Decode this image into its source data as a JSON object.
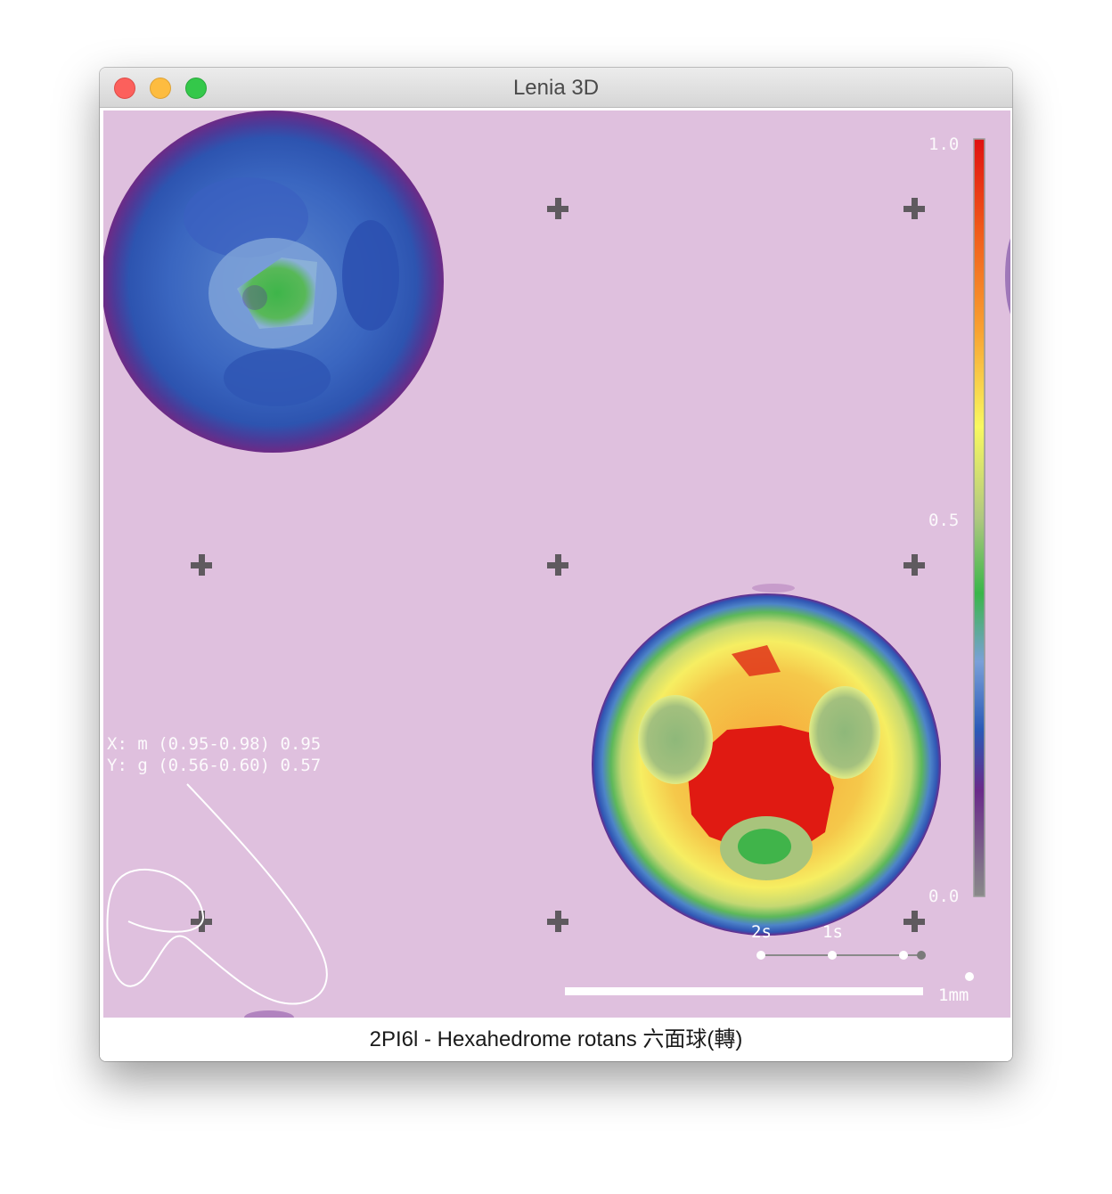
{
  "window": {
    "title": "Lenia 3D",
    "controls": [
      "close-button",
      "minimize-button",
      "zoom-button"
    ]
  },
  "colors": {
    "background": "#dfc0de",
    "cross_markers": "#5f5a5f",
    "overlay_text": "#ffffff",
    "colormap": [
      "#808080",
      "#6a2a8a",
      "#2a5ab8",
      "#7aa0d8",
      "#3ab64a",
      "#b0c880",
      "#f8f860",
      "#f8a030",
      "#f06020",
      "#e01010"
    ]
  },
  "colorbar": {
    "max_label": "1.0",
    "mid_label": "0.5",
    "min_label": "0.0"
  },
  "stats": {
    "x_line": "X: m (0.95-0.98) 0.95",
    "y_line": "Y: g (0.56-0.60) 0.57"
  },
  "timeline": {
    "label_2s": "2s",
    "label_1s": "1s"
  },
  "scale": {
    "label": "1mm"
  },
  "caption": "2PI6l - Hexahedrome rotans 六面球(轉)"
}
